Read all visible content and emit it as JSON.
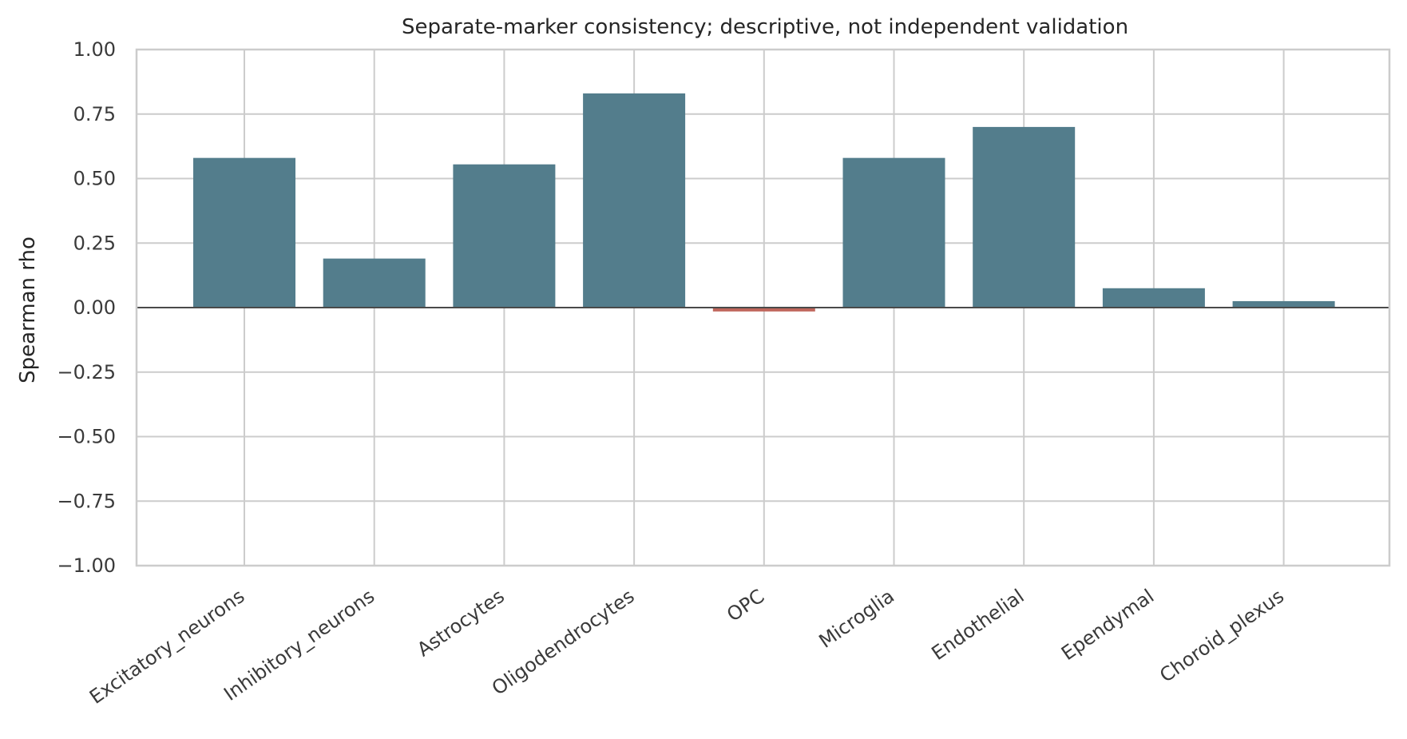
{
  "chart_data": {
    "type": "bar",
    "title": "Separate-marker consistency; descriptive, not independent validation",
    "xlabel": "",
    "ylabel": "Spearman rho",
    "ylim": [
      -1.0,
      1.0
    ],
    "yticks": [
      "1.00",
      "0.75",
      "0.50",
      "0.25",
      "0.00",
      "−0.25",
      "−0.50",
      "−0.75",
      "−1.00"
    ],
    "ytick_values": [
      1.0,
      0.75,
      0.5,
      0.25,
      0.0,
      -0.25,
      -0.5,
      -0.75,
      -1.0
    ],
    "grid": true,
    "categories": [
      "Excitatory_neurons",
      "Inhibitory_neurons",
      "Astrocytes",
      "Oligodendrocytes",
      "OPC",
      "Microglia",
      "Endothelial",
      "Ependymal",
      "Choroid_plexus"
    ],
    "values": [
      0.58,
      0.19,
      0.555,
      0.83,
      -0.015,
      0.58,
      0.7,
      0.075,
      0.025
    ],
    "colors": {
      "positive": "#537d8c",
      "negative": "#c0665c",
      "grid": "#cccccc",
      "zero_line": "#4a4a4a",
      "spine": "#cccccc"
    }
  }
}
